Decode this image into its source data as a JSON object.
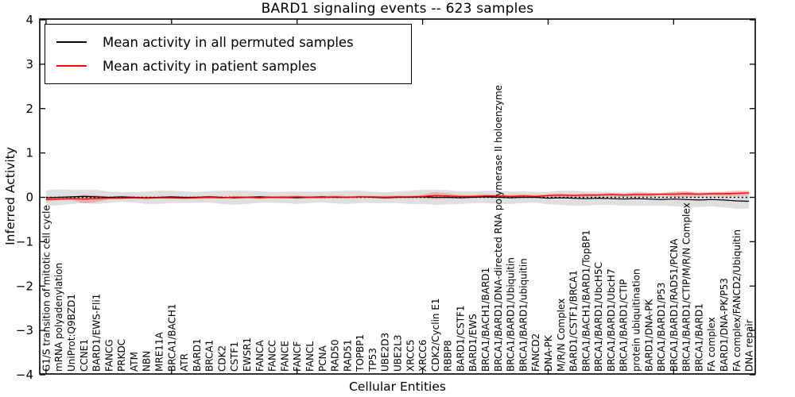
{
  "title": "BARD1 signaling events -- 623 samples",
  "legend": {
    "items": [
      {
        "label": "Mean activity in all permuted samples",
        "color": "#000000"
      },
      {
        "label": "Mean activity in patient samples",
        "color": "#ff0000"
      }
    ]
  },
  "chart_data": {
    "type": "line",
    "title": "BARD1 signaling events -- 623 samples",
    "xlabel": "Cellular Entities",
    "ylabel": "Inferred Activity",
    "ylim": [
      -4,
      4
    ],
    "ytick_values": [
      4,
      3,
      2,
      1,
      0,
      -1,
      -2,
      -3,
      -4
    ],
    "ytick_labels": [
      "4",
      "3",
      "2",
      "1",
      "0",
      "−1",
      "−2",
      "−3",
      "−4"
    ],
    "xtick_positions": [
      0,
      10,
      20,
      30,
      40,
      50
    ],
    "grid": false,
    "legend_position": "upper left",
    "categories": [
      "G1/S transition of mitotic cell cycle",
      "mRNA polyadenylation",
      "UniProt:Q9BZD1",
      "CCNE1",
      "BARD1/EWS-Fli1",
      "FANCG",
      "PRKDC",
      "ATM",
      "NBN",
      "MRE11A",
      "BRCA1/BACH1",
      "ATR",
      "BARD1",
      "BRCA1",
      "CDK2",
      "CSTF1",
      "EWSR1",
      "FANCA",
      "FANCC",
      "FANCE",
      "FANCF",
      "FANCL",
      "PCNA",
      "RAD50",
      "RAD51",
      "TOPBP1",
      "TP53",
      "UBE2D3",
      "UBE2L3",
      "XRCC5",
      "XRCC6",
      "CDK2/Cyclin E1",
      "RBBP8",
      "BARD1/CSTF1",
      "BARD1/EWS",
      "BRCA1/BACH1/BARD1",
      "BRCA1/BARD1/DNA-directed RNA polymerase II holoenzyme",
      "BRCA1/BARD1/Ubiquitin",
      "BRCA1/BARD1/ubiquitin",
      "FANCD2",
      "DNA-PK",
      "M/R/N Complex",
      "BARD1/CSTF1/BRCA1",
      "BRCA1/BACH1/BARD1/TopBP1",
      "BRCA1/BARD1/UbcH5C",
      "BRCA1/BARD1/UbcH7",
      "BRCA1/BARD1/CTIP",
      "protein ubiquitination",
      "BARD1/DNA-PK",
      "BRCA1/BARD1/P53",
      "BRCA1/BARD1/RAD51/PCNA",
      "BRCA1/BARD1/CTIP/M/R/N Complex",
      "BRCA1/BARD1",
      "FA complex",
      "BARD1/DNA-PK/P53",
      "FA complex/FANCD2/Ubiquitin",
      "DNA repair"
    ],
    "series": [
      {
        "name": "Mean activity in all permuted samples",
        "color": "#000000",
        "line_width": 1.2,
        "values": [
          -0.01,
          0,
          0.01,
          0.02,
          0.01,
          0,
          0.01,
          0,
          -0.01,
          0,
          0.01,
          0,
          0,
          0.01,
          0,
          -0.01,
          0,
          0.01,
          0,
          0,
          -0.01,
          0,
          0.01,
          0,
          0,
          0.01,
          0,
          -0.01,
          0,
          0,
          0.01,
          0,
          0,
          -0.01,
          0,
          0.01,
          0,
          -0.01,
          0,
          0,
          -0.02,
          -0.01,
          -0.02,
          -0.03,
          -0.02,
          -0.03,
          -0.04,
          -0.03,
          -0.04,
          -0.05,
          -0.04,
          -0.05,
          -0.06,
          -0.05,
          -0.06,
          -0.08,
          -0.09
        ],
        "band_halfwidth": [
          0.17,
          0.18,
          0.16,
          0.15,
          0.16,
          0.13,
          0.11,
          0.12,
          0.14,
          0.15,
          0.14,
          0.13,
          0.12,
          0.13,
          0.15,
          0.16,
          0.15,
          0.13,
          0.12,
          0.13,
          0.14,
          0.13,
          0.12,
          0.14,
          0.15,
          0.14,
          0.13,
          0.12,
          0.13,
          0.15,
          0.16,
          0.17,
          0.16,
          0.14,
          0.13,
          0.14,
          0.15,
          0.14,
          0.13,
          0.12,
          0.14,
          0.16,
          0.17,
          0.16,
          0.15,
          0.14,
          0.15,
          0.16,
          0.15,
          0.14,
          0.16,
          0.17,
          0.16,
          0.15,
          0.17,
          0.18,
          0.16
        ],
        "band_color": "#aaaaaa",
        "band_opacity": 0.38
      },
      {
        "name": "Mean activity in patient samples",
        "color": "#ff0000",
        "line_width": 1.4,
        "values": [
          -0.05,
          -0.04,
          -0.03,
          -0.04,
          -0.03,
          -0.02,
          -0.02,
          -0.01,
          -0.02,
          -0.01,
          -0.01,
          -0.02,
          -0.01,
          0,
          -0.01,
          0,
          0,
          -0.01,
          0,
          0,
          0.01,
          0,
          0,
          0.01,
          0,
          0.01,
          0.01,
          0,
          0.01,
          0.01,
          0.02,
          0.04,
          0.03,
          0.02,
          0.02,
          0.03,
          0.03,
          0.02,
          0.03,
          0.02,
          0.04,
          0.05,
          0.04,
          0.05,
          0.05,
          0.06,
          0.05,
          0.06,
          0.06,
          0.07,
          0.07,
          0.08,
          0.07,
          0.08,
          0.08,
          0.09,
          0.1
        ],
        "band_halfwidth": [
          0.04,
          0.03,
          0.03,
          0.1,
          0.08,
          0.03,
          0.02,
          0.03,
          0.03,
          0.02,
          0.03,
          0.02,
          0.03,
          0.03,
          0.02,
          0.03,
          0.02,
          0.03,
          0.02,
          0.03,
          0.03,
          0.02,
          0.03,
          0.03,
          0.02,
          0.03,
          0.02,
          0.03,
          0.03,
          0.02,
          0.04,
          0.08,
          0.06,
          0.03,
          0.03,
          0.04,
          0.03,
          0.03,
          0.04,
          0.03,
          0.03,
          0.04,
          0.03,
          0.04,
          0.03,
          0.04,
          0.03,
          0.04,
          0.04,
          0.03,
          0.05,
          0.06,
          0.04,
          0.04,
          0.05,
          0.06,
          0.05
        ],
        "band_color": "#ff0000",
        "band_opacity": 0.22
      }
    ],
    "baseline": {
      "value": 0,
      "color": "#000000",
      "dash": "2 3",
      "width": 1.4
    }
  }
}
